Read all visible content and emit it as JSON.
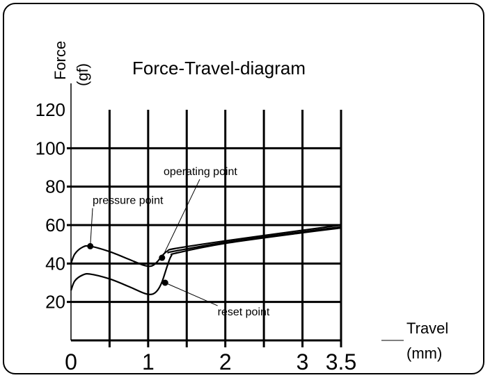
{
  "chart_data": {
    "type": "line",
    "title": "Force-Travel-diagram",
    "ylabel": {
      "name": "Force",
      "unit": "(gf)"
    },
    "xlabel": {
      "name": "Travel",
      "unit": "(mm)"
    },
    "xlim": [
      0,
      3.5
    ],
    "ylim": [
      0,
      120
    ],
    "xticks": [
      "0",
      "1",
      "2",
      "3",
      "3.5"
    ],
    "yticks": [
      "20",
      "40",
      "60",
      "80",
      "100",
      "120"
    ],
    "ytick_values": [
      20,
      40,
      60,
      80,
      100,
      120
    ],
    "xtick_values": [
      0,
      1,
      2,
      3,
      3.5
    ],
    "vgrid": [
      0.5,
      1,
      1.5,
      2,
      2.5,
      3,
      3.5
    ],
    "hgrid": [
      20,
      40,
      60,
      80,
      100
    ],
    "grid": true,
    "series": [
      {
        "key": "press",
        "points": [
          [
            0,
            40
          ],
          [
            0.05,
            45
          ],
          [
            0.15,
            48.5
          ],
          [
            0.25,
            49
          ],
          [
            0.5,
            46.2
          ],
          [
            0.75,
            42.2
          ],
          [
            0.95,
            39
          ],
          [
            1.05,
            38.8
          ],
          [
            1.12,
            41
          ],
          [
            1.18,
            44
          ],
          [
            1.25,
            46.5
          ],
          [
            1.35,
            47.8
          ],
          [
            2.0,
            51.8
          ],
          [
            3.0,
            57.3
          ],
          [
            3.5,
            60
          ]
        ]
      },
      {
        "key": "bottom-upper",
        "points": [
          [
            1.25,
            45.5
          ],
          [
            1.35,
            46.5
          ],
          [
            2.0,
            51
          ],
          [
            3.0,
            56.5
          ],
          [
            3.5,
            59
          ]
        ]
      },
      {
        "key": "release",
        "points": [
          [
            0,
            26
          ],
          [
            0.05,
            31
          ],
          [
            0.15,
            34
          ],
          [
            0.25,
            34.5
          ],
          [
            0.5,
            32
          ],
          [
            0.75,
            28
          ],
          [
            0.95,
            24.5
          ],
          [
            1.05,
            24
          ],
          [
            1.12,
            26
          ],
          [
            1.18,
            30.5
          ],
          [
            1.25,
            39
          ],
          [
            1.3,
            44
          ],
          [
            1.37,
            45.5
          ],
          [
            2.0,
            50.5
          ],
          [
            3.0,
            56
          ],
          [
            3.5,
            58.5
          ]
        ]
      }
    ],
    "annotations": [
      {
        "text": "pressure point",
        "x": 0.25,
        "y": 49,
        "label_x": 0.28,
        "label_y": 71
      },
      {
        "text": "operating point",
        "x": 1.18,
        "y": 43,
        "label_x": 1.2,
        "label_y": 86
      },
      {
        "text": "reset point",
        "x": 1.22,
        "y": 30,
        "label_x": 1.9,
        "label_y": 13
      }
    ]
  }
}
